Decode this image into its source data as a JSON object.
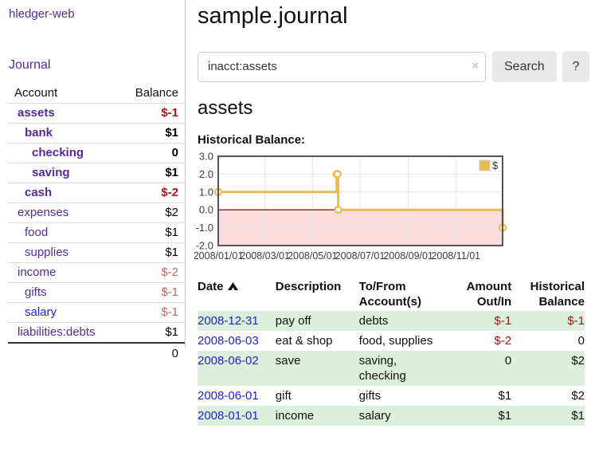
{
  "sidebar": {
    "app_title": "hledger-web",
    "nav_journal": "Journal",
    "accounts_table": {
      "headers": {
        "account": "Account",
        "balance": "Balance"
      },
      "rows": [
        {
          "name": "assets",
          "indent": 0,
          "bold": true,
          "link": "purple",
          "balance": "$-1",
          "balance_style": "neg bold"
        },
        {
          "name": "bank",
          "indent": 1,
          "bold": true,
          "link": "purple",
          "balance": "$1",
          "balance_style": "bold"
        },
        {
          "name": "checking",
          "indent": 2,
          "bold": true,
          "link": "purple",
          "balance": "0",
          "balance_style": "bold"
        },
        {
          "name": "saving",
          "indent": 2,
          "bold": true,
          "link": "purple",
          "balance": "$1",
          "balance_style": "bold"
        },
        {
          "name": "cash",
          "indent": 1,
          "bold": true,
          "link": "purple",
          "balance": "$-2",
          "balance_style": "neg bold"
        },
        {
          "name": "expenses",
          "indent": 0,
          "bold": false,
          "link": "purple",
          "balance": "$2",
          "balance_style": ""
        },
        {
          "name": "food",
          "indent": 1,
          "bold": false,
          "link": "purple",
          "balance": "$1",
          "balance_style": ""
        },
        {
          "name": "supplies",
          "indent": 1,
          "bold": false,
          "link": "purple",
          "balance": "$1",
          "balance_style": ""
        },
        {
          "name": "income",
          "indent": 0,
          "bold": false,
          "link": "purple",
          "balance": "$-2",
          "balance_style": "neglight"
        },
        {
          "name": "gifts",
          "indent": 1,
          "bold": false,
          "link": "purple",
          "balance": "$-1",
          "balance_style": "neglight"
        },
        {
          "name": "salary",
          "indent": 1,
          "bold": false,
          "link": "blue",
          "balance": "$-1",
          "balance_style": "neglight"
        },
        {
          "name": "liabilities:debts",
          "indent": 0,
          "bold": false,
          "link": "purple",
          "balance": "$1",
          "balance_style": ""
        }
      ],
      "total": "0"
    }
  },
  "main": {
    "title": "sample.journal",
    "search": {
      "value": "inacct:assets",
      "clear_icon": "×",
      "button_label": "Search",
      "help_label": "?"
    },
    "account_heading": "assets",
    "chart_label": "Historical Balance:",
    "register": {
      "headers": {
        "date": "Date",
        "description": "Description",
        "accounts": "To/From Account(s)",
        "amount": "Amount Out/In",
        "balance": "Historical Balance"
      },
      "rows": [
        {
          "date": "2008-12-31",
          "description": "pay off",
          "accounts": "debts",
          "amount": "$-1",
          "amount_neg": true,
          "balance": "$-1",
          "balance_neg": true,
          "shaded": true
        },
        {
          "date": "2008-06-03",
          "description": "eat & shop",
          "accounts": "food, supplies",
          "amount": "$-2",
          "amount_neg": true,
          "balance": "0",
          "balance_neg": false,
          "shaded": false
        },
        {
          "date": "2008-06-02",
          "description": "save",
          "accounts": "saving, checking",
          "amount": "0",
          "amount_neg": false,
          "balance": "$2",
          "balance_neg": false,
          "shaded": true
        },
        {
          "date": "2008-06-01",
          "description": "gift",
          "accounts": "gifts",
          "amount": "$1",
          "amount_neg": false,
          "balance": "$2",
          "balance_neg": false,
          "shaded": false
        },
        {
          "date": "2008-01-01",
          "description": "income",
          "accounts": "salary",
          "amount": "$1",
          "amount_neg": false,
          "balance": "$1",
          "balance_neg": false,
          "shaded": true
        }
      ]
    }
  },
  "chart_data": {
    "type": "line",
    "title": "Historical Balance:",
    "x_start": "2008-01-01",
    "x_end": "2008-12-31",
    "x_ticks": [
      {
        "date": "2008-01-01",
        "label": "2008/01/01"
      },
      {
        "date": "2008-03-01",
        "label": "2008/03/01"
      },
      {
        "date": "2008-05-01",
        "label": "2008/05/01"
      },
      {
        "date": "2008-07-01",
        "label": "2008/07/01"
      },
      {
        "date": "2008-09-01",
        "label": "2008/09/01"
      },
      {
        "date": "2008-11-01",
        "label": "2008/11/01"
      }
    ],
    "y_ticks": [
      3.0,
      2.0,
      1.0,
      0.0,
      -1.0,
      -2.0
    ],
    "ylim": [
      -2,
      3
    ],
    "grid": true,
    "legend_position": "top-right",
    "series": [
      {
        "name": "$",
        "steps": true,
        "points": [
          [
            "2008-01-01",
            1
          ],
          [
            "2008-06-01",
            2
          ],
          [
            "2008-06-02",
            2
          ],
          [
            "2008-06-03",
            0
          ],
          [
            "2008-12-31",
            -1
          ]
        ]
      }
    ],
    "colors": {
      "line": "#eabc4e",
      "marker_fill": "#ffffff",
      "negative_region": "#fbdcdc",
      "zero_line": "#8b1d1d",
      "grid": "#e4e4e4",
      "border": "#545454",
      "tick_text": "#3c3c3c"
    }
  }
}
